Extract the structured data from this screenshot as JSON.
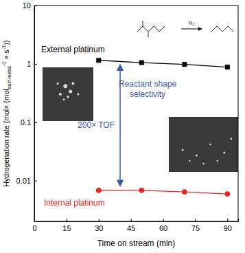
{
  "chart_data": {
    "type": "line",
    "y_label": [
      "Hydrogenation rate (mol× (mol",
      "surf-metal",
      "-1",
      " × s",
      "-1",
      "))"
    ],
    "x_label": "Time on stream (min)",
    "x": [
      30,
      50,
      70,
      90
    ],
    "xlim": [
      0,
      95
    ],
    "xticks": [
      0,
      15,
      30,
      45,
      60,
      75,
      90
    ],
    "ylim": [
      0.002,
      10
    ],
    "yticks": [
      0.01,
      0.1,
      1,
      10
    ],
    "log": "y",
    "grid": false,
    "series": [
      {
        "name": "External platinum",
        "color": "#000000",
        "marker": "square",
        "line_style": "solid",
        "values": [
          1.15,
          1.05,
          0.98,
          0.88
        ]
      },
      {
        "name": "Internal platinum",
        "color": "#e8231e",
        "marker": "circle",
        "line_style": "solid",
        "values": [
          0.0068,
          0.0068,
          0.0064,
          0.0059
        ]
      }
    ],
    "annotations": [
      {
        "text": "Reactant shape",
        "color": "#3a5ba9"
      },
      {
        "text": "selectivity",
        "color": "#3a5ba9"
      },
      {
        "text": "200× TOF",
        "color": "#3a5ba9"
      },
      {
        "text": "H₂",
        "color": "#000000"
      }
    ]
  }
}
